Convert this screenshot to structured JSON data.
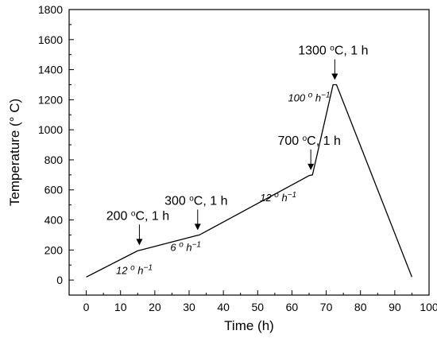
{
  "chart_data": {
    "type": "line",
    "xlabel": "Time (h)",
    "ylabel": "Temperature (° C)",
    "xlim": [
      -5,
      100
    ],
    "ylim": [
      -100,
      1800
    ],
    "x_ticks": [
      0,
      10,
      20,
      30,
      40,
      50,
      60,
      70,
      80,
      90,
      100
    ],
    "y_ticks": [
      0,
      200,
      400,
      600,
      800,
      1000,
      1200,
      1400,
      1600,
      1800
    ],
    "grid": false,
    "series": [
      {
        "x": [
          0,
          15,
          16,
          32,
          33,
          65,
          66,
          72,
          73,
          95
        ],
        "y": [
          20,
          195,
          200,
          295,
          300,
          695,
          700,
          1300,
          1300,
          20
        ]
      }
    ],
    "annotations": [
      {
        "base": "200 ",
        "sup": "o",
        "rest": "C, 1 h",
        "x": 15.5,
        "y": 200
      },
      {
        "base": "300 ",
        "sup": "o",
        "rest": "C, 1 h",
        "x": 32.5,
        "y": 300
      },
      {
        "base": "700 ",
        "sup": "o",
        "rest": "C, 1 h",
        "x": 65.5,
        "y": 700
      },
      {
        "base": "1300 ",
        "sup": "o",
        "rest": "C, 1 h",
        "x": 72.5,
        "y": 1300
      }
    ],
    "rate_labels": [
      {
        "base": "12 ",
        "sup": "o",
        "rest": " h",
        "exp": "−1",
        "x": 14,
        "y": 40
      },
      {
        "base": "6 ",
        "sup": "o",
        "rest": " h",
        "exp": "−1",
        "x": 29,
        "y": 195
      },
      {
        "base": "12 ",
        "sup": "o",
        "rest": " h",
        "exp": "−1",
        "x": 56,
        "y": 525
      },
      {
        "base": "100 ",
        "sup": "o",
        "rest": " h",
        "exp": "−1",
        "x": 65,
        "y": 1190
      }
    ]
  }
}
